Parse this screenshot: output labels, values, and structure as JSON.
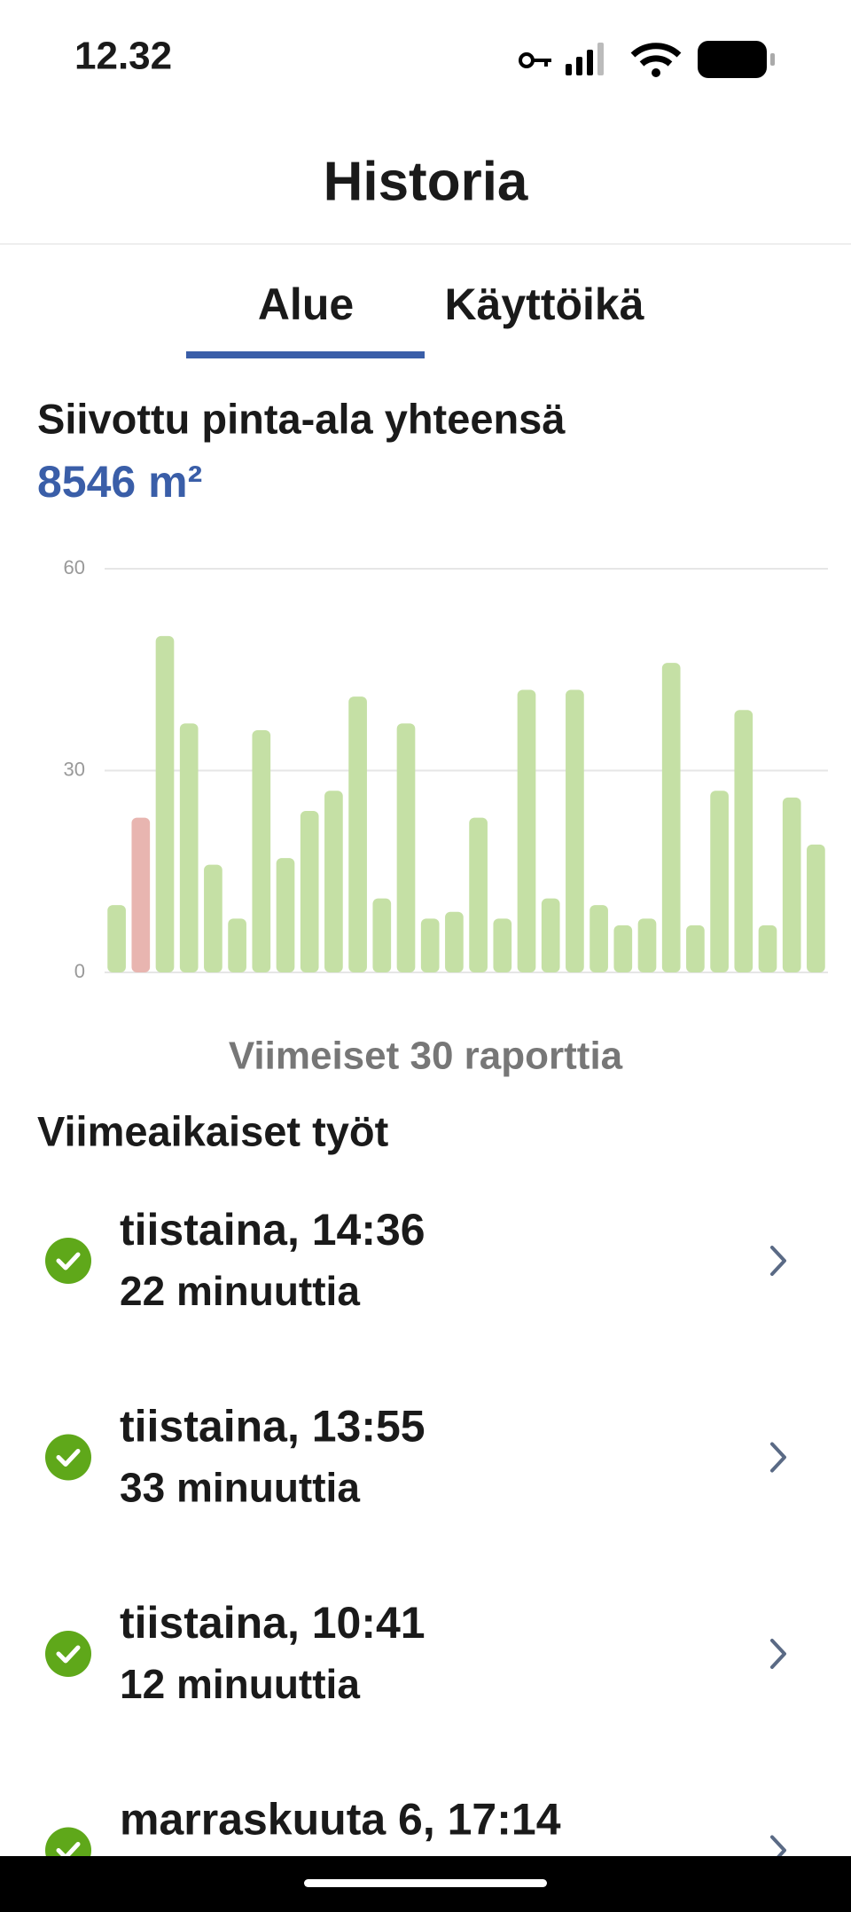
{
  "status_bar": {
    "time": "12.32"
  },
  "header": {
    "title": "Historia"
  },
  "tabs": [
    "Alue",
    "Käyttöikä"
  ],
  "summary": {
    "label": "Siivottu pinta-ala yhteensä",
    "value": "8546 m²"
  },
  "chart_data": {
    "type": "bar",
    "categories": [
      null,
      null,
      null,
      null,
      null,
      null,
      null,
      null,
      null,
      null,
      null,
      null,
      null,
      null,
      null,
      null,
      null,
      null,
      null,
      null,
      null,
      null,
      null,
      null,
      null,
      null,
      null,
      null,
      null,
      null
    ],
    "values": [
      10,
      23,
      50,
      37,
      16,
      8,
      36,
      17,
      24,
      27,
      41,
      11,
      37,
      8,
      9,
      23,
      8,
      42,
      11,
      42,
      10,
      7,
      8,
      46,
      7,
      27,
      39,
      7,
      26,
      19
    ],
    "colors": [
      "#c5e0a5",
      "#e8b5b0",
      "#c5e0a5",
      "#c5e0a5",
      "#c5e0a5",
      "#c5e0a5",
      "#c5e0a5",
      "#c5e0a5",
      "#c5e0a5",
      "#c5e0a5",
      "#c5e0a5",
      "#c5e0a5",
      "#c5e0a5",
      "#c5e0a5",
      "#c5e0a5",
      "#c5e0a5",
      "#c5e0a5",
      "#c5e0a5",
      "#c5e0a5",
      "#c5e0a5",
      "#c5e0a5",
      "#c5e0a5",
      "#c5e0a5",
      "#c5e0a5",
      "#c5e0a5",
      "#c5e0a5",
      "#c5e0a5",
      "#c5e0a5",
      "#c5e0a5",
      "#c5e0a5"
    ],
    "ylim": [
      0,
      60
    ],
    "yticks": [
      0,
      30,
      60
    ],
    "grid": true
  },
  "chart_caption": "Viimeiset 30 raporttia",
  "recent": {
    "title": "Viimeaikaiset työt",
    "items": [
      {
        "title": "tiistaina, 14:36",
        "duration": "22 minuuttia"
      },
      {
        "title": "tiistaina, 13:55",
        "duration": "33 minuuttia"
      },
      {
        "title": "tiistaina, 10:41",
        "duration": "12 minuuttia"
      },
      {
        "title": "marraskuuta 6, 17:14"
      }
    ]
  }
}
